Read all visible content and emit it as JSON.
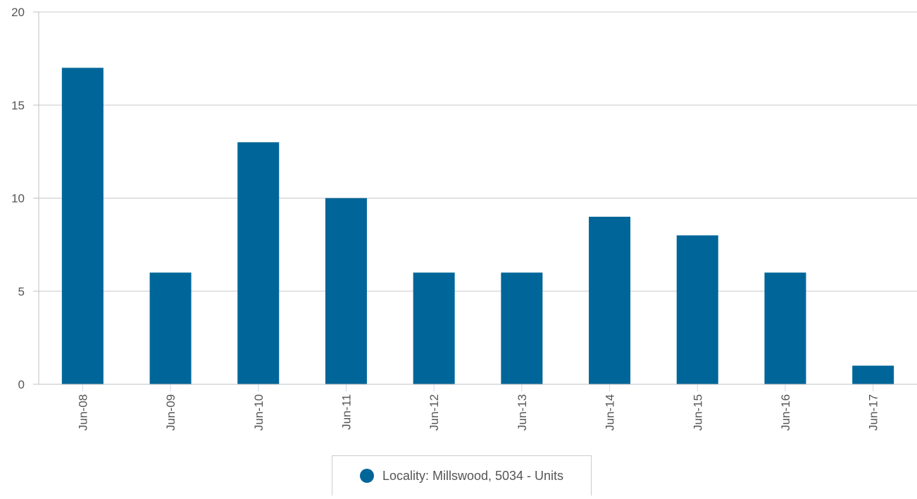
{
  "chart_data": {
    "type": "bar",
    "categories": [
      "Jun-08",
      "Jun-09",
      "Jun-10",
      "Jun-11",
      "Jun-12",
      "Jun-13",
      "Jun-14",
      "Jun-15",
      "Jun-16",
      "Jun-17"
    ],
    "series": [
      {
        "name": "Locality: Millswood, 5034 - Units",
        "values": [
          17,
          6,
          13,
          10,
          6,
          6,
          9,
          8,
          6,
          1
        ],
        "color": "#006699"
      }
    ],
    "ylim": [
      0,
      20
    ],
    "yticks": [
      0,
      5,
      10,
      15,
      20
    ],
    "grid": true,
    "legend_position": "bottom-center",
    "title": "",
    "xlabel": "",
    "ylabel": ""
  },
  "legend": {
    "label": "Locality: Millswood, 5034 - Units",
    "color": "#006699"
  }
}
